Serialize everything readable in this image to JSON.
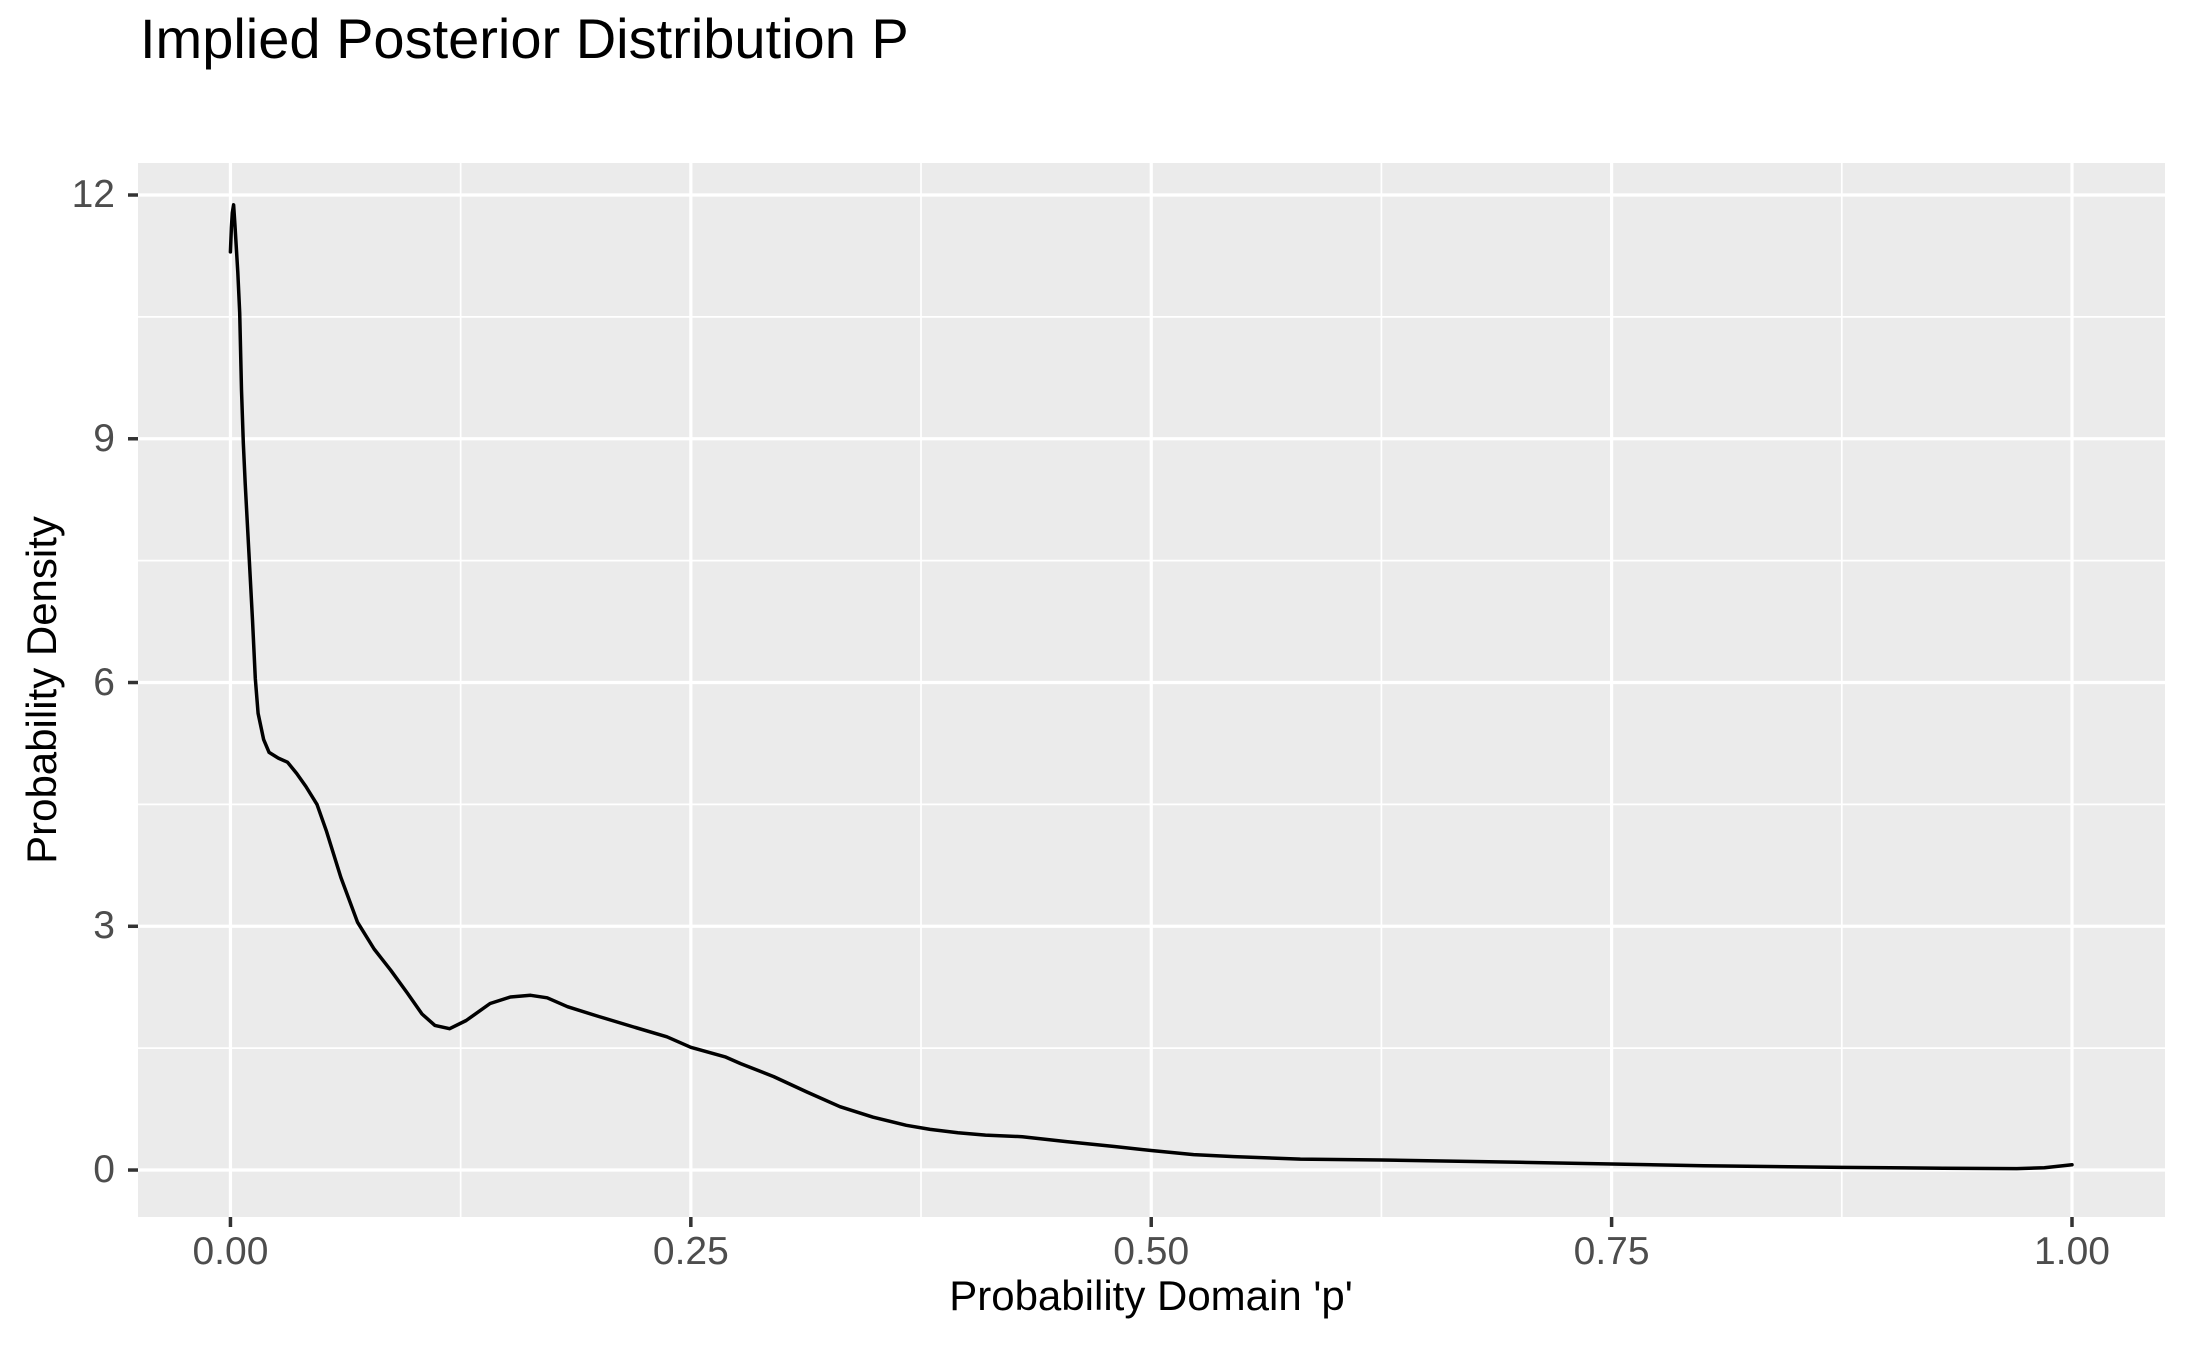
{
  "colors": {
    "background": "#FFFFFF",
    "panel": "#EBEBEB",
    "grid": "#FFFFFF",
    "line": "#000000",
    "tick_mark": "#333333",
    "tick_label": "#4D4D4D",
    "text": "#000000"
  },
  "chart_data": {
    "type": "line",
    "subtype": "density",
    "title": "Implied Posterior Distribution P",
    "xlabel": "Probability Domain 'p'",
    "ylabel": "Probability Density",
    "xlim": [
      -0.0502,
      1.0505
    ],
    "ylim": [
      -0.578,
      12.394
    ],
    "grid": "major-and-minor-white-on-grey-panel",
    "legend_position": "none",
    "line_width": 3.5,
    "x_ticks": {
      "values": [
        0,
        0.25,
        0.5,
        0.75,
        1.0
      ],
      "labels": [
        "0.00",
        "0.25",
        "0.50",
        "0.75",
        "1.00"
      ],
      "minor": [
        0.125,
        0.375,
        0.625,
        0.875
      ]
    },
    "y_ticks": {
      "values": [
        0,
        3,
        6,
        9,
        12
      ],
      "labels": [
        "0",
        "3",
        "6",
        "9",
        "12"
      ],
      "minor": [
        1.5,
        4.5,
        7.5,
        10.5
      ]
    },
    "series": [
      {
        "name": "posterior-density-curve",
        "x": [
          0.0,
          0.0005,
          0.001,
          0.0017,
          0.0025,
          0.004,
          0.005,
          0.006,
          0.007,
          0.008,
          0.01,
          0.012,
          0.0135,
          0.015,
          0.018,
          0.021,
          0.026,
          0.031,
          0.036,
          0.041,
          0.047,
          0.052,
          0.06,
          0.069,
          0.078,
          0.087,
          0.096,
          0.104,
          0.111,
          0.119,
          0.128,
          0.141,
          0.152,
          0.163,
          0.172,
          0.183,
          0.2,
          0.219,
          0.237,
          0.25,
          0.269,
          0.277,
          0.295,
          0.313,
          0.331,
          0.349,
          0.367,
          0.38,
          0.395,
          0.41,
          0.43,
          0.454,
          0.48,
          0.5,
          0.523,
          0.545,
          0.581,
          0.625,
          0.65,
          0.7,
          0.75,
          0.8,
          0.875,
          0.93,
          0.97,
          0.985,
          1.0
        ],
        "y": [
          11.3,
          11.6,
          11.78,
          11.88,
          11.62,
          11.05,
          10.55,
          9.6,
          8.95,
          8.45,
          7.6,
          6.77,
          6.05,
          5.62,
          5.3,
          5.14,
          5.07,
          5.02,
          4.88,
          4.72,
          4.5,
          4.18,
          3.6,
          3.05,
          2.72,
          2.46,
          2.18,
          1.92,
          1.78,
          1.74,
          1.84,
          2.05,
          2.13,
          2.15,
          2.12,
          2.01,
          1.89,
          1.76,
          1.64,
          1.51,
          1.39,
          1.31,
          1.15,
          0.96,
          0.78,
          0.65,
          0.55,
          0.5,
          0.46,
          0.43,
          0.41,
          0.35,
          0.29,
          0.24,
          0.19,
          0.165,
          0.135,
          0.123,
          0.115,
          0.095,
          0.074,
          0.052,
          0.033,
          0.022,
          0.018,
          0.028,
          0.065
        ]
      }
    ]
  }
}
